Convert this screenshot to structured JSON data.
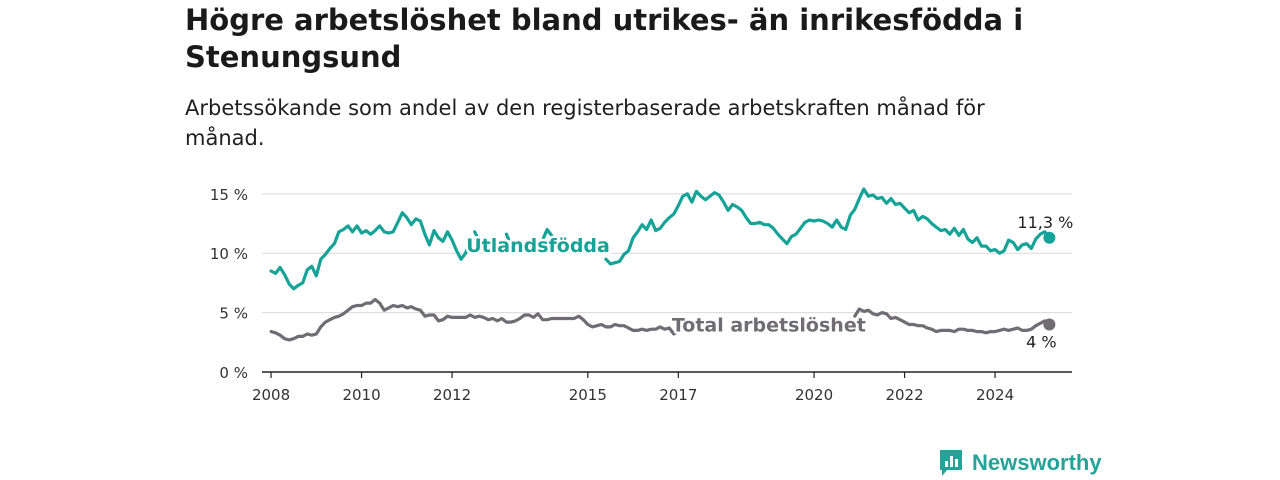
{
  "title": "Högre arbetslöshet bland utrikes- än inrikesfödda i Stenungsund",
  "subtitle": "Arbetssökande som andel av den registerbaserade arbetskraften månad för månad.",
  "brand": {
    "name": "Newsworthy",
    "logo_icon": "newsworthy-logo-icon"
  },
  "colors": {
    "utlandsfodda": "#15a398",
    "total": "#6f6c73",
    "grid": "#d9d9d9",
    "axis": "#222222"
  },
  "chart_data": {
    "type": "line",
    "x_tick_labels": [
      "2008",
      "2010",
      "2012",
      "2015",
      "2017",
      "2020",
      "2022",
      "2024"
    ],
    "x_tick_values": [
      2008.0,
      2010.0,
      2012.0,
      2015.0,
      2017.0,
      2020.0,
      2022.0,
      2024.0
    ],
    "y_tick_labels": [
      "0 %",
      "5 %",
      "10 %",
      "15 %"
    ],
    "y_tick_values": [
      0,
      5,
      10,
      15
    ],
    "xlim": [
      2007.8,
      2025.7
    ],
    "ylim": [
      0,
      16.5
    ],
    "grid": "horizontal",
    "series": [
      {
        "name": "Utlandsfödda",
        "color": "#15a398",
        "end_label": "11,3 %",
        "points": [
          [
            2008.0,
            8.5
          ],
          [
            2008.1,
            8.3
          ],
          [
            2008.2,
            8.8
          ],
          [
            2008.3,
            8.2
          ],
          [
            2008.4,
            7.4
          ],
          [
            2008.5,
            7.0
          ],
          [
            2008.6,
            7.3
          ],
          [
            2008.7,
            7.5
          ],
          [
            2008.8,
            8.6
          ],
          [
            2008.9,
            8.9
          ],
          [
            2009.0,
            8.1
          ],
          [
            2009.1,
            9.5
          ],
          [
            2009.2,
            9.9
          ],
          [
            2009.3,
            10.4
          ],
          [
            2009.4,
            10.8
          ],
          [
            2009.5,
            11.8
          ],
          [
            2009.6,
            12.0
          ],
          [
            2009.7,
            12.3
          ],
          [
            2009.8,
            11.8
          ],
          [
            2009.9,
            12.3
          ],
          [
            2010.0,
            11.7
          ],
          [
            2010.1,
            11.9
          ],
          [
            2010.2,
            11.6
          ],
          [
            2010.3,
            11.9
          ],
          [
            2010.4,
            12.3
          ],
          [
            2010.5,
            11.8
          ],
          [
            2010.6,
            11.7
          ],
          [
            2010.7,
            11.8
          ],
          [
            2010.8,
            12.6
          ],
          [
            2010.9,
            13.4
          ],
          [
            2011.0,
            13.0
          ],
          [
            2011.1,
            12.4
          ],
          [
            2011.2,
            12.9
          ],
          [
            2011.3,
            12.7
          ],
          [
            2011.4,
            11.6
          ],
          [
            2011.5,
            10.7
          ],
          [
            2011.6,
            11.9
          ],
          [
            2011.7,
            11.3
          ],
          [
            2011.8,
            11.0
          ],
          [
            2011.9,
            11.8
          ],
          [
            2012.0,
            11.1
          ],
          [
            2012.1,
            10.2
          ],
          [
            2012.2,
            9.5
          ],
          [
            2012.3,
            10.0
          ],
          [
            2012.4,
            11.1
          ],
          null,
          [
            2012.5,
            11.8
          ],
          [
            2012.6,
            11.0
          ],
          null,
          [
            2013.2,
            11.6
          ],
          [
            2013.3,
            10.7
          ],
          null,
          [
            2014.0,
            11.1
          ],
          [
            2014.1,
            12.0
          ],
          [
            2014.2,
            11.5
          ],
          [
            2014.3,
            11.1
          ],
          [
            2014.4,
            10.5
          ],
          null,
          [
            2015.4,
            9.5
          ],
          [
            2015.5,
            9.1
          ],
          [
            2015.6,
            9.2
          ],
          [
            2015.7,
            9.3
          ],
          [
            2015.8,
            9.9
          ],
          [
            2015.9,
            10.2
          ],
          [
            2016.0,
            11.3
          ],
          [
            2016.1,
            11.8
          ],
          [
            2016.2,
            12.4
          ],
          [
            2016.3,
            12.0
          ],
          [
            2016.4,
            12.8
          ],
          [
            2016.5,
            11.9
          ],
          [
            2016.6,
            12.1
          ],
          [
            2016.7,
            12.6
          ],
          [
            2016.8,
            13.0
          ],
          [
            2016.9,
            13.3
          ],
          [
            2017.0,
            14.0
          ],
          [
            2017.1,
            14.8
          ],
          [
            2017.2,
            15.0
          ],
          [
            2017.3,
            14.3
          ],
          [
            2017.4,
            15.2
          ],
          [
            2017.5,
            14.8
          ],
          [
            2017.6,
            14.5
          ],
          [
            2017.7,
            14.8
          ],
          [
            2017.8,
            15.1
          ],
          [
            2017.9,
            14.9
          ],
          [
            2018.0,
            14.3
          ],
          [
            2018.1,
            13.6
          ],
          [
            2018.2,
            14.1
          ],
          [
            2018.3,
            13.9
          ],
          [
            2018.4,
            13.6
          ],
          [
            2018.5,
            13.0
          ],
          [
            2018.6,
            12.5
          ],
          [
            2018.7,
            12.5
          ],
          [
            2018.8,
            12.6
          ],
          [
            2018.9,
            12.4
          ],
          [
            2019.0,
            12.4
          ],
          [
            2019.1,
            12.1
          ],
          [
            2019.2,
            11.6
          ],
          [
            2019.3,
            11.2
          ],
          [
            2019.4,
            10.8
          ],
          [
            2019.5,
            11.4
          ],
          [
            2019.6,
            11.6
          ],
          [
            2019.7,
            12.1
          ],
          [
            2019.8,
            12.6
          ],
          [
            2019.9,
            12.8
          ],
          [
            2020.0,
            12.7
          ],
          [
            2020.1,
            12.8
          ],
          [
            2020.2,
            12.7
          ],
          [
            2020.3,
            12.5
          ],
          [
            2020.4,
            12.2
          ],
          [
            2020.5,
            12.8
          ],
          [
            2020.6,
            12.2
          ],
          [
            2020.7,
            12.0
          ],
          [
            2020.8,
            13.2
          ],
          [
            2020.9,
            13.7
          ],
          [
            2021.0,
            14.6
          ],
          [
            2021.1,
            15.4
          ],
          [
            2021.2,
            14.8
          ],
          [
            2021.3,
            14.9
          ],
          [
            2021.4,
            14.6
          ],
          [
            2021.5,
            14.7
          ],
          [
            2021.6,
            14.2
          ],
          [
            2021.7,
            14.6
          ],
          [
            2021.8,
            14.1
          ],
          [
            2021.9,
            14.2
          ],
          [
            2022.0,
            13.8
          ],
          [
            2022.1,
            13.4
          ],
          [
            2022.2,
            13.6
          ],
          [
            2022.3,
            12.8
          ],
          [
            2022.4,
            13.1
          ],
          [
            2022.5,
            12.9
          ],
          [
            2022.6,
            12.5
          ],
          [
            2022.7,
            12.2
          ],
          [
            2022.8,
            11.9
          ],
          [
            2022.9,
            12.0
          ],
          [
            2023.0,
            11.6
          ],
          [
            2023.1,
            12.1
          ],
          [
            2023.2,
            11.5
          ],
          [
            2023.3,
            12.0
          ],
          [
            2023.4,
            11.2
          ],
          [
            2023.5,
            10.9
          ],
          [
            2023.6,
            11.3
          ],
          [
            2023.7,
            10.6
          ],
          [
            2023.8,
            10.6
          ],
          [
            2023.9,
            10.2
          ],
          [
            2024.0,
            10.3
          ],
          [
            2024.1,
            10.0
          ],
          [
            2024.2,
            10.2
          ],
          [
            2024.3,
            11.1
          ],
          [
            2024.4,
            10.9
          ],
          [
            2024.5,
            10.3
          ],
          [
            2024.6,
            10.7
          ],
          [
            2024.7,
            10.8
          ],
          [
            2024.8,
            10.4
          ],
          [
            2024.9,
            11.2
          ],
          [
            2025.0,
            11.6
          ],
          [
            2025.1,
            11.8
          ],
          [
            2025.2,
            11.3
          ]
        ]
      },
      {
        "name": "Total arbetslöshet",
        "color": "#6f6c73",
        "end_label": "4 %",
        "points": [
          [
            2008.0,
            3.4
          ],
          [
            2008.1,
            3.3
          ],
          [
            2008.2,
            3.1
          ],
          [
            2008.3,
            2.8
          ],
          [
            2008.4,
            2.7
          ],
          [
            2008.5,
            2.8
          ],
          [
            2008.6,
            3.0
          ],
          [
            2008.7,
            3.0
          ],
          [
            2008.8,
            3.2
          ],
          [
            2008.9,
            3.1
          ],
          [
            2009.0,
            3.2
          ],
          [
            2009.1,
            3.8
          ],
          [
            2009.2,
            4.2
          ],
          [
            2009.3,
            4.4
          ],
          [
            2009.4,
            4.6
          ],
          [
            2009.5,
            4.7
          ],
          [
            2009.6,
            4.9
          ],
          [
            2009.7,
            5.2
          ],
          [
            2009.8,
            5.5
          ],
          [
            2009.9,
            5.6
          ],
          [
            2010.0,
            5.6
          ],
          [
            2010.1,
            5.8
          ],
          [
            2010.2,
            5.8
          ],
          [
            2010.3,
            6.1
          ],
          [
            2010.4,
            5.8
          ],
          [
            2010.5,
            5.2
          ],
          [
            2010.6,
            5.4
          ],
          [
            2010.7,
            5.6
          ],
          [
            2010.8,
            5.5
          ],
          [
            2010.9,
            5.6
          ],
          [
            2011.0,
            5.4
          ],
          [
            2011.1,
            5.5
          ],
          [
            2011.2,
            5.3
          ],
          [
            2011.3,
            5.2
          ],
          [
            2011.4,
            4.7
          ],
          [
            2011.5,
            4.8
          ],
          [
            2011.6,
            4.8
          ],
          [
            2011.7,
            4.3
          ],
          [
            2011.8,
            4.4
          ],
          [
            2011.9,
            4.7
          ],
          [
            2012.0,
            4.6
          ],
          [
            2012.1,
            4.6
          ],
          [
            2012.2,
            4.6
          ],
          [
            2012.3,
            4.6
          ],
          [
            2012.4,
            4.8
          ],
          [
            2012.5,
            4.6
          ],
          [
            2012.6,
            4.7
          ],
          [
            2012.7,
            4.6
          ],
          [
            2012.8,
            4.4
          ],
          [
            2012.9,
            4.5
          ],
          [
            2013.0,
            4.3
          ],
          [
            2013.1,
            4.5
          ],
          [
            2013.2,
            4.2
          ],
          [
            2013.3,
            4.2
          ],
          [
            2013.4,
            4.3
          ],
          [
            2013.5,
            4.5
          ],
          [
            2013.6,
            4.8
          ],
          [
            2013.7,
            4.8
          ],
          [
            2013.8,
            4.6
          ],
          [
            2013.9,
            4.9
          ],
          [
            2014.0,
            4.4
          ],
          [
            2014.1,
            4.4
          ],
          [
            2014.2,
            4.5
          ],
          [
            2014.3,
            4.5
          ],
          [
            2014.4,
            4.5
          ],
          [
            2014.5,
            4.5
          ],
          [
            2014.6,
            4.5
          ],
          [
            2014.7,
            4.5
          ],
          [
            2014.8,
            4.7
          ],
          [
            2014.9,
            4.4
          ],
          [
            2015.0,
            4.0
          ],
          [
            2015.1,
            3.8
          ],
          [
            2015.2,
            3.9
          ],
          [
            2015.3,
            4.0
          ],
          [
            2015.4,
            3.8
          ],
          [
            2015.5,
            3.8
          ],
          [
            2015.6,
            4.0
          ],
          [
            2015.7,
            3.9
          ],
          [
            2015.8,
            3.9
          ],
          [
            2015.9,
            3.7
          ],
          [
            2016.0,
            3.5
          ],
          [
            2016.1,
            3.5
          ],
          [
            2016.2,
            3.6
          ],
          [
            2016.3,
            3.5
          ],
          [
            2016.4,
            3.6
          ],
          [
            2016.5,
            3.6
          ],
          [
            2016.6,
            3.8
          ],
          [
            2016.7,
            3.6
          ],
          [
            2016.8,
            3.7
          ],
          [
            2016.9,
            3.2
          ],
          [
            2017.0,
            3.4
          ],
          [
            2017.1,
            3.5
          ],
          [
            2017.2,
            3.6
          ],
          [
            2017.3,
            3.4
          ],
          [
            2017.4,
            3.8
          ],
          null,
          [
            2020.9,
            4.7
          ],
          [
            2021.0,
            5.3
          ],
          [
            2021.1,
            5.1
          ],
          [
            2021.2,
            5.2
          ],
          [
            2021.3,
            4.9
          ],
          [
            2021.4,
            4.8
          ],
          [
            2021.5,
            5.0
          ],
          [
            2021.6,
            4.9
          ],
          [
            2021.7,
            4.5
          ],
          [
            2021.8,
            4.6
          ],
          [
            2021.9,
            4.4
          ],
          [
            2022.0,
            4.2
          ],
          [
            2022.1,
            4.0
          ],
          [
            2022.2,
            4.0
          ],
          [
            2022.3,
            3.9
          ],
          [
            2022.4,
            3.9
          ],
          [
            2022.5,
            3.7
          ],
          [
            2022.6,
            3.6
          ],
          [
            2022.7,
            3.4
          ],
          [
            2022.8,
            3.5
          ],
          [
            2022.9,
            3.5
          ],
          [
            2023.0,
            3.5
          ],
          [
            2023.1,
            3.4
          ],
          [
            2023.2,
            3.6
          ],
          [
            2023.3,
            3.6
          ],
          [
            2023.4,
            3.5
          ],
          [
            2023.5,
            3.5
          ],
          [
            2023.6,
            3.4
          ],
          [
            2023.7,
            3.4
          ],
          [
            2023.8,
            3.3
          ],
          [
            2023.9,
            3.4
          ],
          [
            2024.0,
            3.4
          ],
          [
            2024.1,
            3.5
          ],
          [
            2024.2,
            3.6
          ],
          [
            2024.3,
            3.5
          ],
          [
            2024.4,
            3.6
          ],
          [
            2024.5,
            3.7
          ],
          [
            2024.6,
            3.5
          ],
          [
            2024.7,
            3.5
          ],
          [
            2024.8,
            3.6
          ],
          [
            2024.9,
            3.9
          ],
          [
            2025.0,
            4.1
          ],
          [
            2025.1,
            4.3
          ],
          [
            2025.2,
            4.0
          ]
        ]
      }
    ],
    "annotations": [
      {
        "text": "Utlandsfödda",
        "series": 0,
        "x": 2013.9,
        "y": 10.1
      },
      {
        "text": "Total arbetslöshet",
        "series": 1,
        "x": 2019.0,
        "y": 3.4
      }
    ]
  }
}
